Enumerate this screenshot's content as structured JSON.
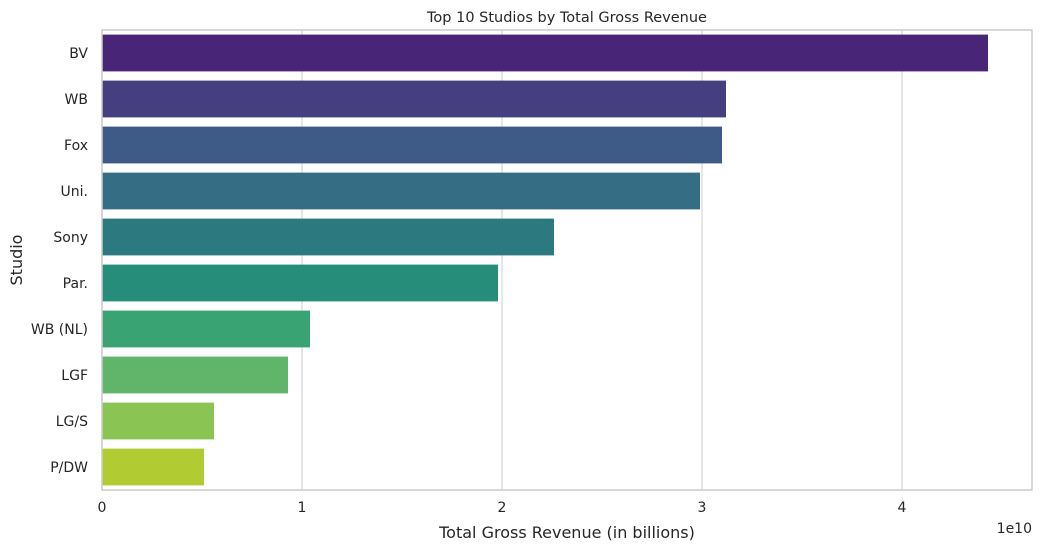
{
  "chart_data": {
    "type": "bar",
    "orientation": "horizontal",
    "title": "Top 10 Studios by Total Gross Revenue",
    "xlabel": "Total Gross Revenue (in billions)",
    "ylabel": "Studio",
    "x_offset_label": "1e10",
    "xlim": [
      0,
      4.65
    ],
    "x_ticks": [
      0,
      1,
      2,
      3,
      4
    ],
    "grid": true,
    "legend": "none",
    "categories": [
      "BV",
      "WB",
      "Fox",
      "Uni.",
      "Sony",
      "Par.",
      "WB (NL)",
      "LGF",
      "LG/S",
      "P/DW"
    ],
    "values": [
      4.43,
      3.12,
      3.1,
      2.99,
      2.26,
      1.98,
      1.04,
      0.93,
      0.56,
      0.51
    ],
    "colors": [
      "#482576",
      "#453f80",
      "#3e5a87",
      "#356d85",
      "#2c7a80",
      "#278d7b",
      "#3aa374",
      "#60b56a",
      "#8ac553",
      "#b1cb33"
    ]
  }
}
